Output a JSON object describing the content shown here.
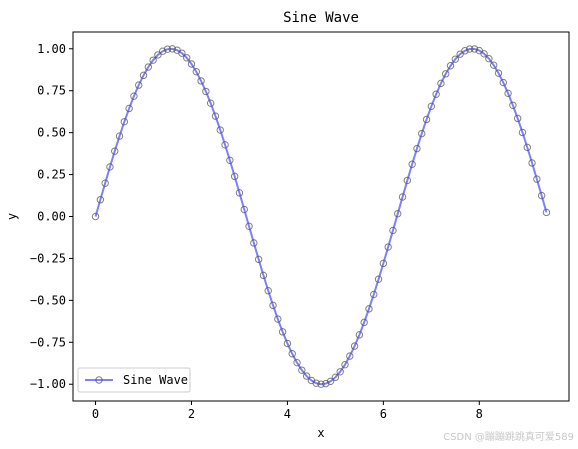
{
  "chart_data": {
    "type": "line",
    "title": "Sine Wave",
    "xlabel": "x",
    "ylabel": "y",
    "xlim": [
      -0.47,
      9.87
    ],
    "ylim": [
      -1.1,
      1.1
    ],
    "xticks": [
      0,
      2,
      4,
      6,
      8
    ],
    "xtick_labels": [
      "0",
      "2",
      "4",
      "6",
      "8"
    ],
    "yticks": [
      -1.0,
      -0.75,
      -0.5,
      -0.25,
      0.0,
      0.25,
      0.5,
      0.75,
      1.0
    ],
    "ytick_labels": [
      "−1.00",
      "−0.75",
      "−0.50",
      "−0.25",
      "0.00",
      "0.25",
      "0.50",
      "0.75",
      "1.00"
    ],
    "grid": false,
    "legend_position": "lower-left",
    "series": [
      {
        "name": "Sine Wave",
        "function": "sin(x)",
        "x_start": 0.0,
        "x_step": 0.1,
        "point_count": 95,
        "line_color": "#0000ff",
        "marker_color": "#555555",
        "marker": "open-circle"
      }
    ]
  },
  "watermark": "CSDN @蹦蹦跳跳真可爱589"
}
